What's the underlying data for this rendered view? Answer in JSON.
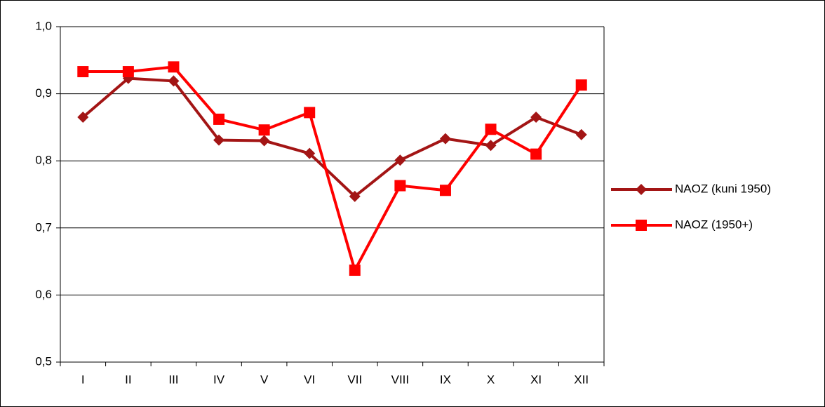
{
  "chart_data": {
    "type": "line",
    "categories": [
      "I",
      "II",
      "III",
      "IV",
      "V",
      "VI",
      "VII",
      "VIII",
      "IX",
      "X",
      "XI",
      "XII"
    ],
    "series": [
      {
        "name": "NAOZ (kuni 1950)",
        "color": "#a31515",
        "marker": "diamond",
        "values": [
          0.865,
          0.923,
          0.919,
          0.831,
          0.83,
          0.811,
          0.747,
          0.801,
          0.833,
          0.823,
          0.865,
          0.839
        ]
      },
      {
        "name": "NAOZ (1950+)",
        "color": "#ff0000",
        "marker": "square",
        "values": [
          0.933,
          0.933,
          0.94,
          0.862,
          0.846,
          0.872,
          0.637,
          0.763,
          0.756,
          0.847,
          0.81,
          0.913
        ]
      }
    ],
    "ylim": [
      0.5,
      1.0
    ],
    "yticks": [
      {
        "value": 0.5,
        "label": "0,5"
      },
      {
        "value": 0.6,
        "label": "0,6"
      },
      {
        "value": 0.7,
        "label": "0,7"
      },
      {
        "value": 0.8,
        "label": "0,8"
      },
      {
        "value": 0.9,
        "label": "0,9"
      },
      {
        "value": 1.0,
        "label": "1,0"
      }
    ],
    "grid": true,
    "legend": "right"
  }
}
